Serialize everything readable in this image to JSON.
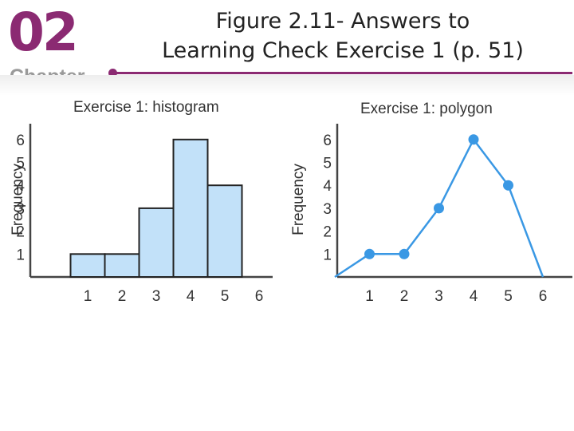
{
  "header": {
    "chapter_number": "02",
    "chapter_label": "Chapter",
    "title_line1": "Figure 2.11- Answers to",
    "title_line2": "Learning Check Exercise 1 (p. 51)",
    "accent_color": "#8b2a72"
  },
  "chart_data": [
    {
      "type": "bar",
      "title": "Exercise 1: histogram",
      "xlabel": "",
      "ylabel": "Frequency",
      "categories": [
        "1",
        "2",
        "3",
        "4",
        "5"
      ],
      "values": [
        1,
        1,
        3,
        6,
        4
      ],
      "x_ticks": [
        "1",
        "2",
        "3",
        "4",
        "5",
        "6"
      ],
      "y_ticks": [
        "1",
        "2",
        "3",
        "4",
        "5",
        "6"
      ],
      "ylim": [
        0,
        6.8
      ],
      "bar_color": "#c2e1f9",
      "edge_color": "#222222",
      "grid": false
    },
    {
      "type": "line",
      "title": "Exercise 1: polygon",
      "xlabel": "",
      "ylabel": "Frequency",
      "x": [
        0,
        1,
        2,
        3,
        4,
        5,
        6
      ],
      "y": [
        0,
        1,
        1,
        3,
        6,
        4,
        0
      ],
      "marker_x": [
        1,
        2,
        3,
        4,
        5
      ],
      "marker_y": [
        1,
        1,
        3,
        6,
        4
      ],
      "x_ticks": [
        "1",
        "2",
        "3",
        "4",
        "5",
        "6"
      ],
      "y_ticks": [
        "1",
        "2",
        "3",
        "4",
        "5",
        "6"
      ],
      "ylim": [
        0,
        6.8
      ],
      "line_color": "#3a98e4",
      "grid": false
    }
  ]
}
